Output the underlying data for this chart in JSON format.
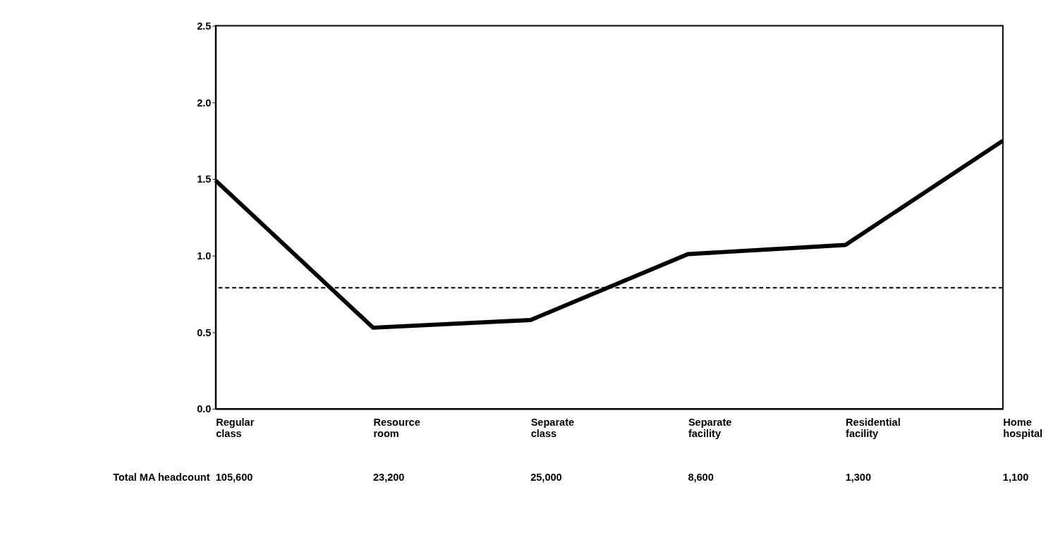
{
  "chart_data": {
    "type": "line",
    "categories": [
      "Regular class",
      "Resource room",
      "Separate class",
      "Separate facility",
      "Residential facility",
      "Home hospital"
    ],
    "series": [
      {
        "color": "#000000",
        "values": [
          1.49,
          0.53,
          0.58,
          1.01,
          1.07,
          1.75
        ]
      }
    ],
    "ylim": [
      0,
      2.5
    ],
    "yticks": [
      {
        "value": 0,
        "label": "0.0"
      },
      {
        "value": 0.5,
        "label": "0.5"
      },
      {
        "value": 1,
        "label": "1.0"
      },
      {
        "value": 1.5,
        "label": "1.5"
      },
      {
        "value": 2,
        "label": "2.0"
      },
      {
        "value": 2.5,
        "label": "2.5"
      }
    ],
    "ref_lines": [
      {
        "axis": "y",
        "value": 0.79,
        "line_style": "dashed",
        "color": "#000000"
      }
    ],
    "annotations": [
      "Total MA headcount",
      "105,600",
      "23,200",
      "25,000",
      "8,600",
      "1,300",
      "1,100"
    ],
    "grid": false,
    "marker": "none",
    "line_style": "solid"
  }
}
